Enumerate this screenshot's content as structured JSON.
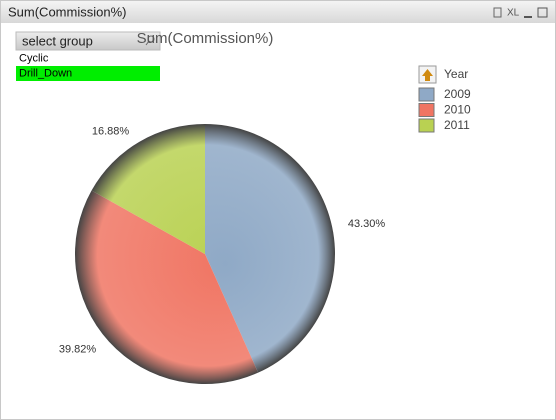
{
  "window": {
    "caption": "Sum(Commission%)",
    "button": "XL"
  },
  "listbox": {
    "title": "select group",
    "items": [
      {
        "label": "Cyclic",
        "selected": false
      },
      {
        "label": "Drill_Down",
        "selected": true
      }
    ]
  },
  "chart_data": {
    "type": "pie",
    "title": "Sum(Commission%)",
    "legend_title": "Year",
    "categories": [
      "2009",
      "2010",
      "2011"
    ],
    "values": [
      43.3,
      39.82,
      16.88
    ],
    "value_labels": [
      "43.30%",
      "39.82%",
      "16.88%"
    ],
    "colors": [
      "#8fa9c6",
      "#f07563",
      "#b9d152"
    ]
  }
}
